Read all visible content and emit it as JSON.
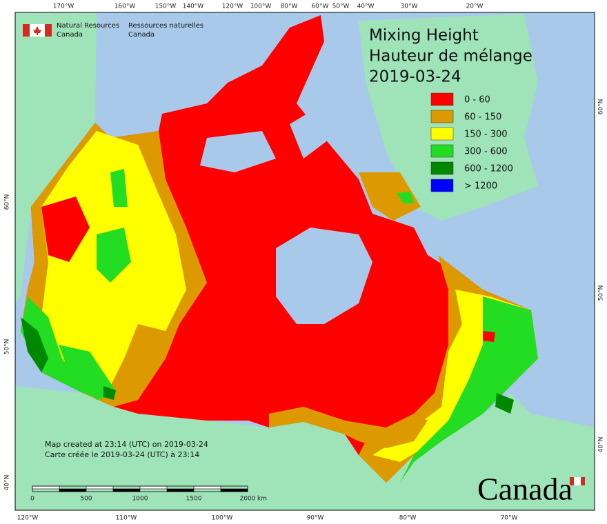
{
  "header": {
    "org_en": [
      "Natural Resources",
      "Canada"
    ],
    "org_fr": [
      "Ressources naturelles",
      "Canada"
    ]
  },
  "title": [
    "Mixing Height",
    "Hauteur de mélange",
    "2019-03-24"
  ],
  "legend": [
    {
      "label": "0 - 60",
      "color": "#ff0000"
    },
    {
      "label": "60 - 150",
      "color": "#dd9900"
    },
    {
      "label": "150 - 300",
      "color": "#ffff00"
    },
    {
      "label": "300 - 600",
      "color": "#22dd22"
    },
    {
      "label": "600 - 1200",
      "color": "#008800"
    },
    {
      "label": "> 1200",
      "color": "#0000ff"
    }
  ],
  "top_labels": [
    "170°W",
    "160°W",
    "150°W",
    "140°W",
    "120°W",
    "100°W",
    "80°W",
    "60°W",
    "50°W",
    "40°W",
    "30°W",
    "20°W"
  ],
  "bottom_labels": [
    "120°W",
    "110°W",
    "100°W",
    "90°W",
    "80°W",
    "70°W"
  ],
  "left_labels": [
    "60°N",
    "50°N",
    "40°N"
  ],
  "right_labels": [
    "60°N",
    "50°N",
    "40°N"
  ],
  "notes": [
    "Map created at 23:14 (UTC) on 2019-03-24",
    "Carte créée le 2019-03-24 (UTC) à 23:14"
  ],
  "scale": {
    "ticks": [
      "0",
      "500",
      "1000",
      "1500",
      "2000"
    ],
    "unit": "km"
  },
  "wordmark": "Canada"
}
